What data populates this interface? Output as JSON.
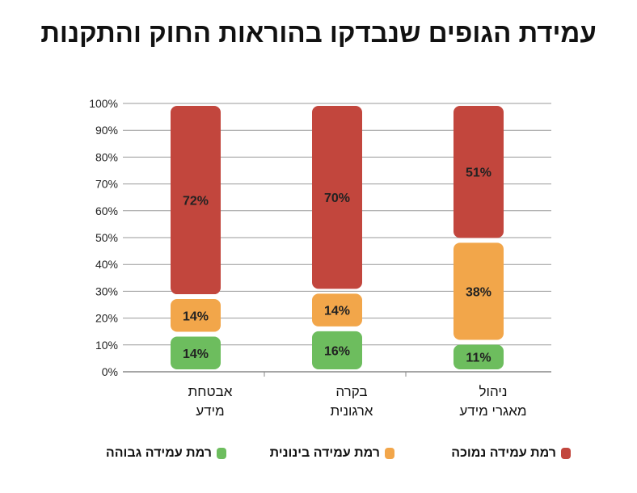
{
  "chart_data": {
    "type": "bar",
    "stacked": true,
    "title": "עמידת הגופים שנבדקו בהוראות החוק והתקנות",
    "categories": [
      [
        "אבטחת",
        "מידע"
      ],
      [
        "בקרה",
        "ארגונית"
      ],
      [
        "ניהול",
        "מאגרי מידע"
      ]
    ],
    "series": [
      {
        "name": "רמת עמידה גבוהה",
        "color": "#6dbd5e",
        "values": [
          14,
          16,
          11
        ]
      },
      {
        "name": "רמת עמידה בינונית",
        "color": "#f2a64a",
        "values": [
          14,
          14,
          38
        ]
      },
      {
        "name": "רמת עמידה נמוכה",
        "color": "#c2463d",
        "values": [
          72,
          70,
          51
        ]
      }
    ],
    "ylim": [
      0,
      100
    ],
    "yticks": [
      "0%",
      "10%",
      "20%",
      "30%",
      "40%",
      "50%",
      "60%",
      "70%",
      "80%",
      "90%",
      "100%"
    ],
    "grid": true,
    "legend_position": "bottom"
  }
}
